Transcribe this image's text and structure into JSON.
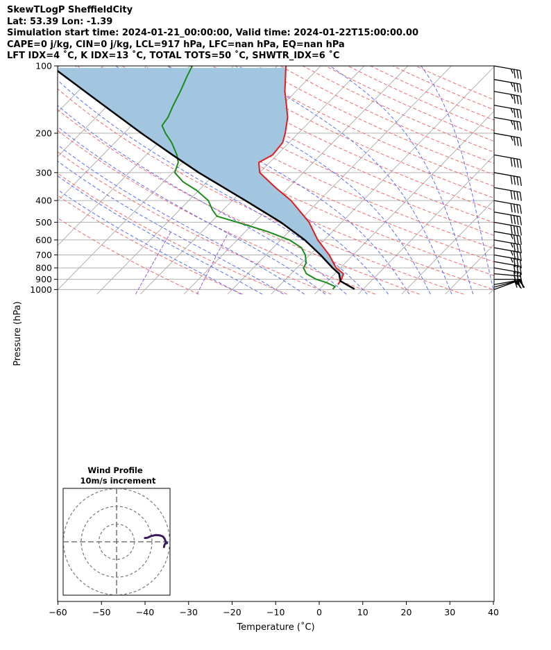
{
  "header": {
    "line1": "SkewTLogP SheffieldCity",
    "line2": "Lat: 53.39   Lon: -1.39",
    "line3": "Simulation start time: 2024-01-21_00:00:00, Valid time: 2024-01-22T15:00:00.00",
    "line4": "CAPE=0 j/kg, CIN=0 j/kg, LCL=917 hPa, LFC=nan hPa, EQ=nan hPa",
    "line5": "LFT IDX=4 ˚C, K IDX=13 ˚C, TOTAL TOTS=50 ˚C, SHWTR_IDX=6 ˚C"
  },
  "colors": {
    "temperature": "#e41a1c",
    "dewpoint": "#1a8a1a",
    "parcel": "#000000",
    "cape_fill": "#a3c6e0",
    "dry_adiabat": "#f06a6a",
    "moist_adiabat": "#5a6ef0",
    "mixing_ratio": "#9b59d0",
    "isotherm": "#aaaaaa",
    "hodograph": "#3d1a5e"
  },
  "chart_data": {
    "type": "skewt",
    "xlabel": "Temperature (˚C)",
    "ylabel": "Pressure (hPa)",
    "x_ticks": [
      "−60",
      "−50",
      "−40",
      "−30",
      "−20",
      "−10",
      "0",
      "10",
      "20",
      "30",
      "40"
    ],
    "y_ticks": [
      "100",
      "200",
      "300",
      "400",
      "500",
      "600",
      "700",
      "800",
      "900",
      "1000"
    ],
    "xlim": [
      -60,
      40
    ],
    "ylim": [
      1050,
      100
    ],
    "log_pressure": true,
    "grid": true,
    "temperature_profile": [
      {
        "p": 950,
        "t": 3.2
      },
      {
        "p": 900,
        "t": 2.8
      },
      {
        "p": 850,
        "t": 2.0
      },
      {
        "p": 800,
        "t": -1.0
      },
      {
        "p": 700,
        "t": -5.5
      },
      {
        "p": 600,
        "t": -11.5
      },
      {
        "p": 500,
        "t": -17.5
      },
      {
        "p": 400,
        "t": -26.5
      },
      {
        "p": 350,
        "t": -33.0
      },
      {
        "p": 300,
        "t": -40.0
      },
      {
        "p": 270,
        "t": -42.5
      },
      {
        "p": 250,
        "t": -41.0
      },
      {
        "p": 220,
        "t": -41.5
      },
      {
        "p": 200,
        "t": -43.0
      },
      {
        "p": 170,
        "t": -46.0
      },
      {
        "p": 150,
        "t": -49.0
      },
      {
        "p": 130,
        "t": -52.5
      },
      {
        "p": 110,
        "t": -56.0
      },
      {
        "p": 100,
        "t": -58.0
      }
    ],
    "dewpoint_profile": [
      {
        "p": 995,
        "t": 3.0
      },
      {
        "p": 970,
        "t": 3.0
      },
      {
        "p": 930,
        "t": 0.0
      },
      {
        "p": 900,
        "t": -3.0
      },
      {
        "p": 850,
        "t": -6.5
      },
      {
        "p": 800,
        "t": -8.5
      },
      {
        "p": 760,
        "t": -9.0
      },
      {
        "p": 700,
        "t": -11.0
      },
      {
        "p": 650,
        "t": -13.5
      },
      {
        "p": 600,
        "t": -18.0
      },
      {
        "p": 550,
        "t": -25.0
      },
      {
        "p": 500,
        "t": -34.0
      },
      {
        "p": 470,
        "t": -40.0
      },
      {
        "p": 440,
        "t": -42.5
      },
      {
        "p": 400,
        "t": -45.5
      },
      {
        "p": 360,
        "t": -50.5
      },
      {
        "p": 330,
        "t": -55.5
      },
      {
        "p": 300,
        "t": -59.5
      },
      {
        "p": 270,
        "t": -61.0
      },
      {
        "p": 250,
        "t": -63.0
      },
      {
        "p": 220,
        "t": -67.0
      },
      {
        "p": 200,
        "t": -70.5
      },
      {
        "p": 185,
        "t": -73.0
      },
      {
        "p": 170,
        "t": -73.5
      },
      {
        "p": 150,
        "t": -75.0
      },
      {
        "p": 130,
        "t": -76.5
      },
      {
        "p": 110,
        "t": -78.5
      },
      {
        "p": 100,
        "t": -79.5
      }
    ],
    "parcel_profile": [
      {
        "p": 995,
        "t": 8.0
      },
      {
        "p": 917,
        "t": 3.0
      },
      {
        "p": 850,
        "t": 1.0
      },
      {
        "p": 800,
        "t": -1.8
      },
      {
        "p": 700,
        "t": -7.5
      },
      {
        "p": 600,
        "t": -14.5
      },
      {
        "p": 500,
        "t": -24.0
      },
      {
        "p": 400,
        "t": -37.0
      },
      {
        "p": 300,
        "t": -54.0
      },
      {
        "p": 250,
        "t": -64.0
      },
      {
        "p": 200,
        "t": -76.0
      },
      {
        "p": 150,
        "t": -91.0
      },
      {
        "p": 100,
        "t": -112.0
      }
    ],
    "wind_barbs": [
      {
        "p": 1000,
        "speed_kt": 20,
        "dir_deg": 250
      },
      {
        "p": 975,
        "speed_kt": 20,
        "dir_deg": 255
      },
      {
        "p": 950,
        "speed_kt": 25,
        "dir_deg": 260
      },
      {
        "p": 900,
        "speed_kt": 30,
        "dir_deg": 270
      },
      {
        "p": 850,
        "speed_kt": 30,
        "dir_deg": 275
      },
      {
        "p": 800,
        "speed_kt": 30,
        "dir_deg": 280
      },
      {
        "p": 750,
        "speed_kt": 30,
        "dir_deg": 280
      },
      {
        "p": 700,
        "speed_kt": 35,
        "dir_deg": 280
      },
      {
        "p": 650,
        "speed_kt": 35,
        "dir_deg": 280
      },
      {
        "p": 600,
        "speed_kt": 35,
        "dir_deg": 280
      },
      {
        "p": 550,
        "speed_kt": 35,
        "dir_deg": 280
      },
      {
        "p": 500,
        "speed_kt": 40,
        "dir_deg": 280
      },
      {
        "p": 450,
        "speed_kt": 40,
        "dir_deg": 280
      },
      {
        "p": 400,
        "speed_kt": 40,
        "dir_deg": 280
      },
      {
        "p": 350,
        "speed_kt": 40,
        "dir_deg": 280
      },
      {
        "p": 300,
        "speed_kt": 40,
        "dir_deg": 280
      },
      {
        "p": 250,
        "speed_kt": 40,
        "dir_deg": 280
      },
      {
        "p": 200,
        "speed_kt": 35,
        "dir_deg": 280
      },
      {
        "p": 170,
        "speed_kt": 35,
        "dir_deg": 280
      },
      {
        "p": 150,
        "speed_kt": 35,
        "dir_deg": 280
      },
      {
        "p": 130,
        "speed_kt": 35,
        "dir_deg": 280
      },
      {
        "p": 115,
        "speed_kt": 35,
        "dir_deg": 280
      },
      {
        "p": 100,
        "speed_kt": 35,
        "dir_deg": 280
      }
    ],
    "hodograph": {
      "title": "Wind Profile",
      "subtitle": "10m/s increment",
      "rings_ms": [
        10,
        20,
        30
      ],
      "points": [
        {
          "u": 26.8,
          "v": -3.0
        },
        {
          "u": 27.0,
          "v": -2.0
        },
        {
          "u": 27.5,
          "v": -1.0
        },
        {
          "u": 28.5,
          "v": -0.8
        },
        {
          "u": 27.8,
          "v": 0.0
        },
        {
          "u": 27.4,
          "v": 1.0
        },
        {
          "u": 27.0,
          "v": 2.0
        },
        {
          "u": 26.2,
          "v": 3.0
        },
        {
          "u": 24.5,
          "v": 3.6
        },
        {
          "u": 22.0,
          "v": 3.8
        },
        {
          "u": 19.5,
          "v": 3.2
        },
        {
          "u": 17.5,
          "v": 2.3
        },
        {
          "u": 16.0,
          "v": 2.1
        }
      ]
    }
  }
}
